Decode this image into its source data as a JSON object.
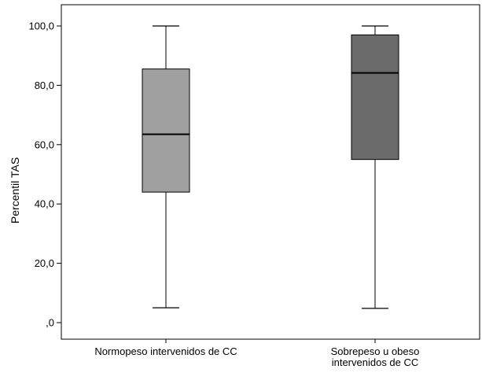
{
  "chart_data": {
    "type": "boxplot",
    "ylabel": "Percentil TAS",
    "ylim": [
      0,
      100
    ],
    "yticks": [
      {
        "value": 0,
        "label": ",0"
      },
      {
        "value": 20,
        "label": "20,0"
      },
      {
        "value": 40,
        "label": "40,0"
      },
      {
        "value": 60,
        "label": "60,0"
      },
      {
        "value": 80,
        "label": "80,0"
      },
      {
        "value": 100,
        "label": "100,0"
      }
    ],
    "categories": [
      {
        "label_lines": [
          "Normopeso intervenidos de CC"
        ],
        "min": 5,
        "q1": 44,
        "median": 63.5,
        "q3": 85.5,
        "max": 100,
        "color": "#a0a0a0"
      },
      {
        "label_lines": [
          "Sobrepeso u obeso",
          "intervenidos de CC"
        ],
        "min": 4.8,
        "q1": 55,
        "median": 84.2,
        "q3": 97,
        "max": 100,
        "color": "#6b6b6b"
      }
    ],
    "grid": false,
    "legend": "none"
  }
}
